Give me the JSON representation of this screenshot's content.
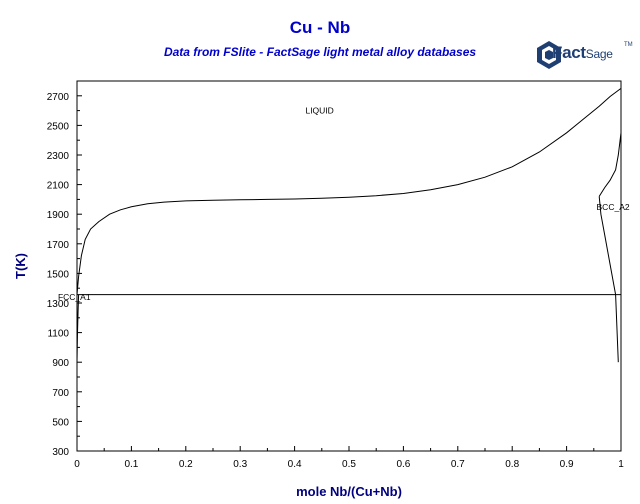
{
  "logo": {
    "brand": "FactSage",
    "tm": "TM",
    "icon": "factsage-logo-icon"
  },
  "chart_data": {
    "type": "line",
    "title": "Cu - Nb",
    "subtitle": "Data from FSlite - FactSage light metal alloy databases",
    "xlabel": "mole Nb/(Cu+Nb)",
    "ylabel": "T(K)",
    "xlim": [
      0,
      1
    ],
    "ylim": [
      300,
      2800
    ],
    "x_ticks": [
      0,
      0.1,
      0.2,
      0.3,
      0.4,
      0.5,
      0.6,
      0.7,
      0.8,
      0.9,
      1
    ],
    "y_ticks": [
      300,
      500,
      700,
      900,
      1100,
      1300,
      1500,
      1700,
      1900,
      2100,
      2300,
      2500,
      2700
    ],
    "grid": false,
    "legend": "none",
    "line_color": "#000000",
    "series": [
      {
        "name": "liquidus",
        "x": [
          0,
          0.003,
          0.008,
          0.015,
          0.025,
          0.04,
          0.06,
          0.08,
          0.1,
          0.13,
          0.16,
          0.2,
          0.25,
          0.3,
          0.35,
          0.4,
          0.45,
          0.5,
          0.55,
          0.6,
          0.65,
          0.7,
          0.75,
          0.8,
          0.85,
          0.9,
          0.93,
          0.96,
          0.98,
          1
        ],
        "y": [
          1357,
          1480,
          1620,
          1730,
          1800,
          1850,
          1900,
          1930,
          1950,
          1970,
          1982,
          1990,
          1994,
          1997,
          2000,
          2003,
          2008,
          2015,
          2025,
          2040,
          2065,
          2100,
          2150,
          2220,
          2320,
          2450,
          2540,
          2630,
          2695,
          2750
        ]
      },
      {
        "name": "cu-solvus",
        "x": [
          0,
          0.001,
          0.002,
          0.003
        ],
        "y": [
          900,
          1100,
          1250,
          1357
        ]
      },
      {
        "name": "bcc-boundary-upper",
        "x": [
          0.96,
          0.97,
          0.98,
          0.99,
          0.995,
          1
        ],
        "y": [
          2020,
          2080,
          2130,
          2200,
          2300,
          2450
        ]
      },
      {
        "name": "bcc-boundary-lower",
        "x": [
          0.96,
          0.963,
          0.97,
          0.98,
          0.99,
          0.995
        ],
        "y": [
          2020,
          1900,
          1760,
          1560,
          1357,
          900
        ]
      },
      {
        "name": "eutectic",
        "x": [
          0,
          1
        ],
        "y": [
          1357,
          1357
        ]
      }
    ],
    "annotations": [
      {
        "text": "LIQUID",
        "x": 0.42,
        "y": 2580
      },
      {
        "text": "BCC_A2",
        "x": 0.955,
        "y": 1930
      },
      {
        "text": "FCC_A1",
        "x": -0.035,
        "y": 1320
      }
    ]
  }
}
